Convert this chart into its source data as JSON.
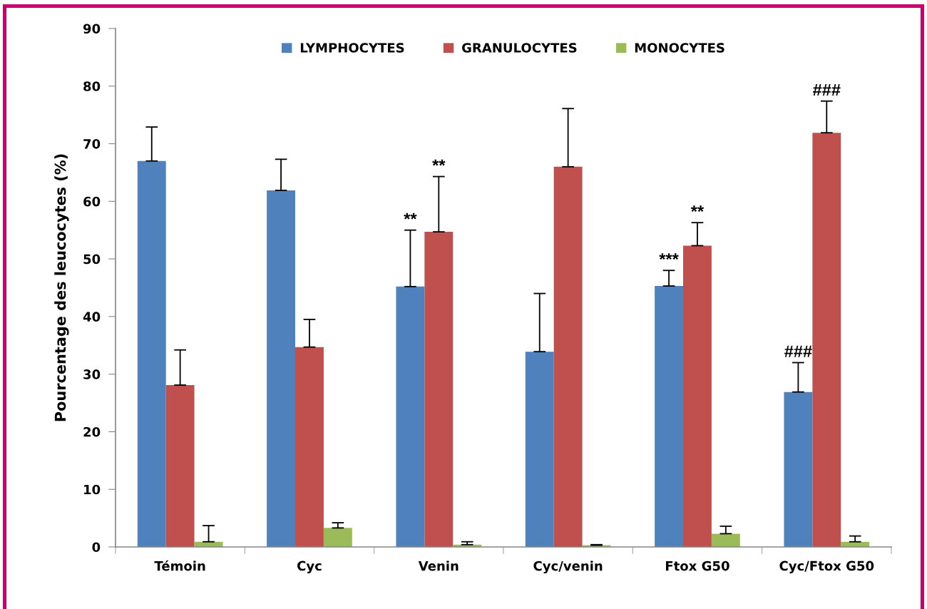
{
  "chart_data": {
    "type": "bar",
    "ylabel": "Pourcentage des leucocytes (%)",
    "categories": [
      "Témoin",
      "Cyc",
      "Venin",
      "Cyc/venin",
      "Ftox G50",
      "Cyc/Ftox G50"
    ],
    "series": [
      {
        "name": "LYMPHOCYTES",
        "color": "#4f81bd",
        "values": [
          67.0,
          61.9,
          45.2,
          33.9,
          45.3,
          26.9
        ],
        "errors": [
          [
            67.0,
            72.9
          ],
          [
            61.9,
            67.3
          ],
          [
            45.2,
            55.0
          ],
          [
            33.9,
            44.0
          ],
          [
            45.3,
            48.0
          ],
          [
            26.9,
            32.0
          ]
        ],
        "value_labels": [
          null,
          null,
          null,
          null,
          "***",
          "###"
        ]
      },
      {
        "name": "GRANULOCYTES",
        "color": "#c0504d",
        "values": [
          28.1,
          34.7,
          54.7,
          66.0,
          52.3,
          71.9
        ],
        "errors": [
          [
            28.1,
            34.2
          ],
          [
            34.7,
            39.5
          ],
          [
            54.7,
            64.3
          ],
          [
            66.0,
            76.1
          ],
          [
            52.3,
            56.3
          ],
          [
            71.9,
            77.4
          ]
        ],
        "value_labels": [
          null,
          null,
          null,
          null,
          "**",
          "###"
        ]
      },
      {
        "name": "MONOCYTES",
        "color": "#9bbb59",
        "values": [
          0.9,
          3.3,
          0.4,
          0.3,
          2.3,
          0.9
        ],
        "errors": [
          [
            0.9,
            3.7
          ],
          [
            3.3,
            4.2
          ],
          [
            0.4,
            0.9
          ],
          [
            0.3,
            0.4
          ],
          [
            2.3,
            3.6
          ],
          [
            0.9,
            1.9
          ]
        ]
      }
    ],
    "ylim": [
      0,
      90
    ],
    "yticks": [
      0,
      10,
      20,
      30,
      40,
      50,
      60,
      70,
      80,
      90
    ],
    "legend": "top",
    "grid": false,
    "annotations": [
      {
        "text": "**",
        "x": "Venin",
        "y": 55.0
      },
      {
        "text": "**",
        "x": "Venin",
        "y": 64.3
      }
    ]
  }
}
